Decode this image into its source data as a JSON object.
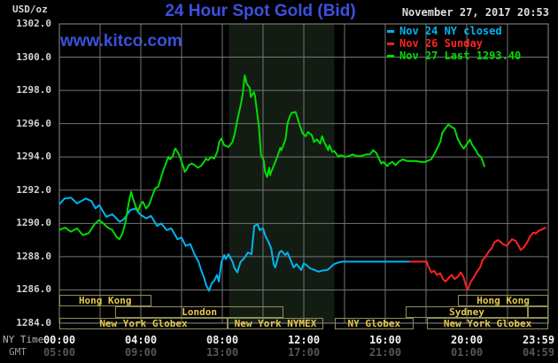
{
  "header": {
    "title": "24 Hour Spot Gold (Bid)",
    "datetime": "November 27, 2017 20:53",
    "watermark": "www.kitco.com",
    "unit": "USD/oz"
  },
  "colors": {
    "background": "#000000",
    "title_blue": "#3c50dc",
    "grid": "#757575",
    "frame": "#8d8d8d",
    "band": "#131c13",
    "session_border": "#8f8f55",
    "session_text": "#e5ca4e",
    "cyan_series": "#00b4f0",
    "red_series": "#ff2222",
    "green_series": "#00dc00"
  },
  "x_axis": {
    "primary_name": "NY Time",
    "secondary_name": "GMT",
    "ticks": [
      {
        "hour": 0,
        "ny": "00:00",
        "gmt": "05:00"
      },
      {
        "hour": 4,
        "ny": "04:00",
        "gmt": "09:00"
      },
      {
        "hour": 8,
        "ny": "08:00",
        "gmt": "13:00"
      },
      {
        "hour": 12,
        "ny": "12:00",
        "gmt": "17:00"
      },
      {
        "hour": 16,
        "ny": "16:00",
        "gmt": "21:00"
      },
      {
        "hour": 20,
        "ny": "20:00",
        "gmt": "01:00"
      },
      {
        "hour": 23.983,
        "ny": "23:59",
        "gmt": "04:59"
      }
    ]
  },
  "y_axis": {
    "tick_labels": [
      "1302.0",
      "1300.0",
      "1298.0",
      "1296.0",
      "1294.0",
      "1292.0",
      "1290.0",
      "1288.0",
      "1286.0",
      "1284.0"
    ]
  },
  "chart_data": {
    "type": "line",
    "title": "24 Hour Spot Gold (Bid)",
    "xlabel": "NY Time / GMT",
    "ylabel": "USD/oz",
    "xlim": [
      0,
      24
    ],
    "ylim": [
      1284,
      1302
    ],
    "grid_x_step_hours": 2,
    "grid_y_step": 2,
    "legend_position": "top-right",
    "highlight_band": {
      "start_hour": 8.33,
      "end_hour": 13.5,
      "color": "#131c13",
      "note": "New York NYMEX floor session"
    },
    "series": [
      {
        "name": "Nov 24 NY closed",
        "color": "#00b4f0",
        "points": [
          [
            0,
            1291.15
          ],
          [
            0.26,
            1291.5
          ],
          [
            0.57,
            1291.55
          ],
          [
            0.87,
            1291.2
          ],
          [
            1.3,
            1291.5
          ],
          [
            1.57,
            1291.35
          ],
          [
            1.78,
            1290.9
          ],
          [
            1.96,
            1291.1
          ],
          [
            2.3,
            1290.4
          ],
          [
            2.6,
            1290.55
          ],
          [
            2.96,
            1290.1
          ],
          [
            3.17,
            1290.25
          ],
          [
            3.48,
            1290.8
          ],
          [
            3.74,
            1290.9
          ],
          [
            3.96,
            1290.55
          ],
          [
            4.26,
            1290.3
          ],
          [
            4.5,
            1290.45
          ],
          [
            4.8,
            1289.85
          ],
          [
            5.0,
            1290.0
          ],
          [
            5.26,
            1289.6
          ],
          [
            5.5,
            1289.7
          ],
          [
            5.8,
            1289.05
          ],
          [
            6.0,
            1289.15
          ],
          [
            6.2,
            1288.65
          ],
          [
            6.43,
            1288.75
          ],
          [
            6.65,
            1288.1
          ],
          [
            6.83,
            1287.7
          ],
          [
            6.96,
            1287.2
          ],
          [
            7.1,
            1286.75
          ],
          [
            7.2,
            1286.3
          ],
          [
            7.35,
            1285.95
          ],
          [
            7.48,
            1286.4
          ],
          [
            7.6,
            1286.55
          ],
          [
            7.74,
            1286.9
          ],
          [
            7.83,
            1286.5
          ],
          [
            7.96,
            1287.7
          ],
          [
            8.1,
            1288.1
          ],
          [
            8.17,
            1287.85
          ],
          [
            8.3,
            1288.15
          ],
          [
            8.5,
            1287.7
          ],
          [
            8.6,
            1287.3
          ],
          [
            8.74,
            1287.05
          ],
          [
            8.9,
            1287.7
          ],
          [
            9.04,
            1287.85
          ],
          [
            9.26,
            1288.25
          ],
          [
            9.43,
            1288.15
          ],
          [
            9.57,
            1289.85
          ],
          [
            9.74,
            1289.95
          ],
          [
            9.83,
            1289.6
          ],
          [
            10.0,
            1289.7
          ],
          [
            10.13,
            1289.2
          ],
          [
            10.26,
            1288.9
          ],
          [
            10.4,
            1288.5
          ],
          [
            10.52,
            1287.55
          ],
          [
            10.6,
            1287.35
          ],
          [
            10.8,
            1288.25
          ],
          [
            10.9,
            1288.35
          ],
          [
            11.1,
            1288.1
          ],
          [
            11.2,
            1288.25
          ],
          [
            11.35,
            1287.8
          ],
          [
            11.5,
            1287.35
          ],
          [
            11.65,
            1287.55
          ],
          [
            11.87,
            1287.2
          ],
          [
            12.0,
            1287.6
          ],
          [
            12.17,
            1287.45
          ],
          [
            12.3,
            1287.3
          ],
          [
            12.52,
            1287.2
          ],
          [
            12.74,
            1287.1
          ],
          [
            12.87,
            1287.15
          ],
          [
            13.17,
            1287.2
          ],
          [
            13.48,
            1287.55
          ],
          [
            13.7,
            1287.65
          ],
          [
            13.9,
            1287.7
          ],
          [
            17.2,
            1287.7
          ]
        ]
      },
      {
        "name": "Nov 26 Sunday",
        "color": "#ff2222",
        "points": [
          [
            17.2,
            1287.7
          ],
          [
            18.04,
            1287.7
          ],
          [
            18.1,
            1287.45
          ],
          [
            18.26,
            1287.05
          ],
          [
            18.4,
            1287.15
          ],
          [
            18.52,
            1286.9
          ],
          [
            18.7,
            1287.0
          ],
          [
            18.83,
            1286.65
          ],
          [
            18.96,
            1286.5
          ],
          [
            19.13,
            1286.75
          ],
          [
            19.26,
            1286.9
          ],
          [
            19.4,
            1286.65
          ],
          [
            19.57,
            1286.8
          ],
          [
            19.7,
            1287.05
          ],
          [
            19.83,
            1286.8
          ],
          [
            20.0,
            1286.1
          ],
          [
            20.04,
            1286.0
          ],
          [
            20.2,
            1286.5
          ],
          [
            20.35,
            1286.75
          ],
          [
            20.48,
            1287.05
          ],
          [
            20.65,
            1287.35
          ],
          [
            20.78,
            1287.8
          ],
          [
            20.9,
            1287.95
          ],
          [
            21.1,
            1288.35
          ],
          [
            21.22,
            1288.5
          ],
          [
            21.35,
            1288.85
          ],
          [
            21.52,
            1289.0
          ],
          [
            21.65,
            1288.9
          ],
          [
            21.78,
            1288.75
          ],
          [
            21.96,
            1288.65
          ],
          [
            22.1,
            1288.85
          ],
          [
            22.22,
            1289.05
          ],
          [
            22.4,
            1288.95
          ],
          [
            22.52,
            1288.7
          ],
          [
            22.65,
            1288.4
          ],
          [
            22.83,
            1288.6
          ],
          [
            22.96,
            1288.85
          ],
          [
            23.1,
            1289.2
          ],
          [
            23.26,
            1289.45
          ],
          [
            23.4,
            1289.4
          ],
          [
            23.52,
            1289.55
          ],
          [
            23.7,
            1289.65
          ],
          [
            23.9,
            1289.75
          ]
        ]
      },
      {
        "name": "Nov 27 Last 1293.40",
        "color": "#00dc00",
        "points": [
          [
            0,
            1289.6
          ],
          [
            0.28,
            1289.75
          ],
          [
            0.56,
            1289.5
          ],
          [
            0.87,
            1289.7
          ],
          [
            1.15,
            1289.3
          ],
          [
            1.44,
            1289.4
          ],
          [
            1.72,
            1289.95
          ],
          [
            1.95,
            1290.2
          ],
          [
            2.16,
            1290.0
          ],
          [
            2.37,
            1289.75
          ],
          [
            2.6,
            1289.6
          ],
          [
            2.8,
            1289.2
          ],
          [
            2.95,
            1289.05
          ],
          [
            3.1,
            1289.4
          ],
          [
            3.25,
            1290.1
          ],
          [
            3.4,
            1291.2
          ],
          [
            3.52,
            1291.9
          ],
          [
            3.6,
            1291.55
          ],
          [
            3.75,
            1291.0
          ],
          [
            3.87,
            1290.75
          ],
          [
            3.96,
            1291.1
          ],
          [
            4.1,
            1291.3
          ],
          [
            4.26,
            1290.9
          ],
          [
            4.4,
            1291.1
          ],
          [
            4.55,
            1291.6
          ],
          [
            4.7,
            1292.1
          ],
          [
            4.85,
            1292.2
          ],
          [
            5.0,
            1292.8
          ],
          [
            5.13,
            1293.3
          ],
          [
            5.2,
            1293.5
          ],
          [
            5.35,
            1294.0
          ],
          [
            5.43,
            1293.85
          ],
          [
            5.57,
            1294.05
          ],
          [
            5.65,
            1294.4
          ],
          [
            5.7,
            1294.5
          ],
          [
            5.87,
            1294.15
          ],
          [
            5.95,
            1293.9
          ],
          [
            6.1,
            1293.35
          ],
          [
            6.15,
            1293.1
          ],
          [
            6.25,
            1293.25
          ],
          [
            6.35,
            1293.5
          ],
          [
            6.5,
            1293.6
          ],
          [
            6.65,
            1293.5
          ],
          [
            6.8,
            1293.35
          ],
          [
            6.95,
            1293.45
          ],
          [
            7.1,
            1293.7
          ],
          [
            7.2,
            1293.9
          ],
          [
            7.3,
            1293.8
          ],
          [
            7.45,
            1294.0
          ],
          [
            7.6,
            1293.9
          ],
          [
            7.75,
            1294.3
          ],
          [
            7.85,
            1294.9
          ],
          [
            7.95,
            1295.1
          ],
          [
            8.1,
            1294.7
          ],
          [
            8.3,
            1294.6
          ],
          [
            8.5,
            1294.9
          ],
          [
            8.6,
            1295.35
          ],
          [
            8.75,
            1296.3
          ],
          [
            8.9,
            1297.1
          ],
          [
            9.0,
            1297.75
          ],
          [
            9.1,
            1298.9
          ],
          [
            9.2,
            1298.4
          ],
          [
            9.35,
            1298.15
          ],
          [
            9.4,
            1297.6
          ],
          [
            9.55,
            1297.9
          ],
          [
            9.6,
            1297.7
          ],
          [
            9.7,
            1296.75
          ],
          [
            9.8,
            1295.8
          ],
          [
            9.85,
            1295.0
          ],
          [
            9.9,
            1294.1
          ],
          [
            10.0,
            1293.9
          ],
          [
            10.05,
            1293.7
          ],
          [
            10.1,
            1293.1
          ],
          [
            10.2,
            1292.8
          ],
          [
            10.3,
            1293.35
          ],
          [
            10.35,
            1292.9
          ],
          [
            10.4,
            1293.1
          ],
          [
            10.6,
            1293.7
          ],
          [
            10.7,
            1294.0
          ],
          [
            10.85,
            1294.55
          ],
          [
            10.9,
            1294.4
          ],
          [
            11.1,
            1295.05
          ],
          [
            11.2,
            1296.0
          ],
          [
            11.3,
            1296.4
          ],
          [
            11.4,
            1296.65
          ],
          [
            11.6,
            1296.7
          ],
          [
            11.7,
            1296.3
          ],
          [
            11.8,
            1295.9
          ],
          [
            11.95,
            1295.4
          ],
          [
            12.1,
            1295.25
          ],
          [
            12.2,
            1295.5
          ],
          [
            12.4,
            1295.3
          ],
          [
            12.5,
            1294.9
          ],
          [
            12.65,
            1295.05
          ],
          [
            12.8,
            1294.8
          ],
          [
            12.9,
            1295.25
          ],
          [
            13.0,
            1294.9
          ],
          [
            13.2,
            1294.4
          ],
          [
            13.25,
            1294.7
          ],
          [
            13.4,
            1294.3
          ],
          [
            13.5,
            1294.35
          ],
          [
            13.7,
            1294.0
          ],
          [
            13.8,
            1294.1
          ],
          [
            14.05,
            1294.0
          ],
          [
            14.2,
            1294.05
          ],
          [
            14.4,
            1294.15
          ],
          [
            14.6,
            1294.05
          ],
          [
            14.8,
            1294.05
          ],
          [
            15.05,
            1294.15
          ],
          [
            15.25,
            1294.15
          ],
          [
            15.4,
            1294.4
          ],
          [
            15.55,
            1294.25
          ],
          [
            15.65,
            1294.0
          ],
          [
            15.8,
            1293.6
          ],
          [
            15.9,
            1293.7
          ],
          [
            16.1,
            1293.45
          ],
          [
            16.2,
            1293.6
          ],
          [
            16.35,
            1293.7
          ],
          [
            16.5,
            1293.5
          ],
          [
            16.65,
            1293.7
          ],
          [
            16.85,
            1293.85
          ],
          [
            17.1,
            1293.75
          ],
          [
            17.3,
            1293.75
          ],
          [
            17.5,
            1293.75
          ],
          [
            17.75,
            1293.7
          ],
          [
            17.95,
            1293.7
          ],
          [
            18.25,
            1293.85
          ],
          [
            18.4,
            1294.15
          ],
          [
            18.5,
            1294.4
          ],
          [
            18.7,
            1294.9
          ],
          [
            18.8,
            1295.45
          ],
          [
            19.0,
            1295.8
          ],
          [
            19.1,
            1295.95
          ],
          [
            19.25,
            1295.8
          ],
          [
            19.4,
            1295.7
          ],
          [
            19.55,
            1295.1
          ],
          [
            19.7,
            1294.75
          ],
          [
            19.85,
            1294.5
          ],
          [
            20.0,
            1294.75
          ],
          [
            20.15,
            1295.05
          ],
          [
            20.25,
            1294.75
          ],
          [
            20.45,
            1294.4
          ],
          [
            20.55,
            1294.15
          ],
          [
            20.7,
            1294.0
          ],
          [
            20.88,
            1293.4
          ]
        ]
      }
    ],
    "sessions": [
      {
        "row": 0,
        "label": "Hong Kong",
        "start_hour": 0,
        "end_hour": 4.5
      },
      {
        "row": 0,
        "label": "Hong Kong",
        "start_hour": 19.57,
        "end_hour": 24
      },
      {
        "row": 1,
        "label": "London",
        "start_hour": 2.75,
        "end_hour": 11.0
      },
      {
        "row": 1,
        "label": "Sydney",
        "start_hour": 17.0,
        "end_hour": 23.0
      },
      {
        "row": 1,
        "label": "",
        "start_hour": 23.0,
        "end_hour": 24
      },
      {
        "row": 2,
        "label": "New York Globex",
        "start_hour": 0,
        "end_hour": 8.26
      },
      {
        "row": 2,
        "label": "New York NYMEX",
        "start_hour": 8.26,
        "end_hour": 12.96
      },
      {
        "row": 2,
        "label": "NY Globex",
        "start_hour": 13.5,
        "end_hour": 17.4
      },
      {
        "row": 2,
        "label": "New York Globex",
        "start_hour": 18.05,
        "end_hour": 24
      }
    ]
  }
}
